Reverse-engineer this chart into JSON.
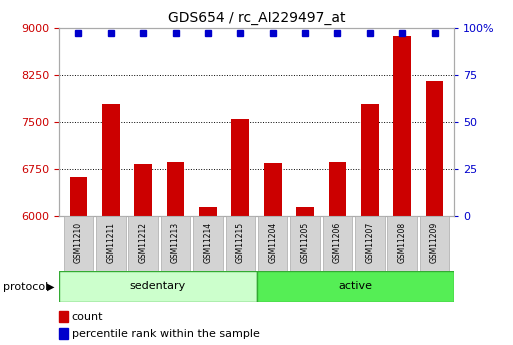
{
  "title": "GDS654 / rc_AI229497_at",
  "samples": [
    "GSM11210",
    "GSM11211",
    "GSM11212",
    "GSM11213",
    "GSM11214",
    "GSM11215",
    "GSM11204",
    "GSM11205",
    "GSM11206",
    "GSM11207",
    "GSM11208",
    "GSM11209"
  ],
  "counts": [
    6620,
    7780,
    6820,
    6860,
    6130,
    7540,
    6840,
    6130,
    6860,
    7780,
    8870,
    8150
  ],
  "percentile_ranks": [
    97,
    97,
    97,
    97,
    97,
    97,
    97,
    97,
    97,
    97,
    97,
    97
  ],
  "ylim": [
    6000,
    9000
  ],
  "yticks_left": [
    6000,
    6750,
    7500,
    8250,
    9000
  ],
  "yticks_right": [
    0,
    25,
    50,
    75,
    100
  ],
  "right_ylim": [
    0,
    100
  ],
  "bar_color": "#cc0000",
  "percentile_color": "#0000cc",
  "bar_width": 0.55,
  "title_fontsize": 10,
  "legend_count_label": "count",
  "legend_percentile_label": "percentile rank within the sample",
  "protocol_label": "protocol",
  "sedentary_color": "#ccffcc",
  "active_color": "#55ee55",
  "group_border_color": "#33aa33",
  "sample_box_color": "#d3d3d3",
  "sample_box_border": "#aaaaaa"
}
